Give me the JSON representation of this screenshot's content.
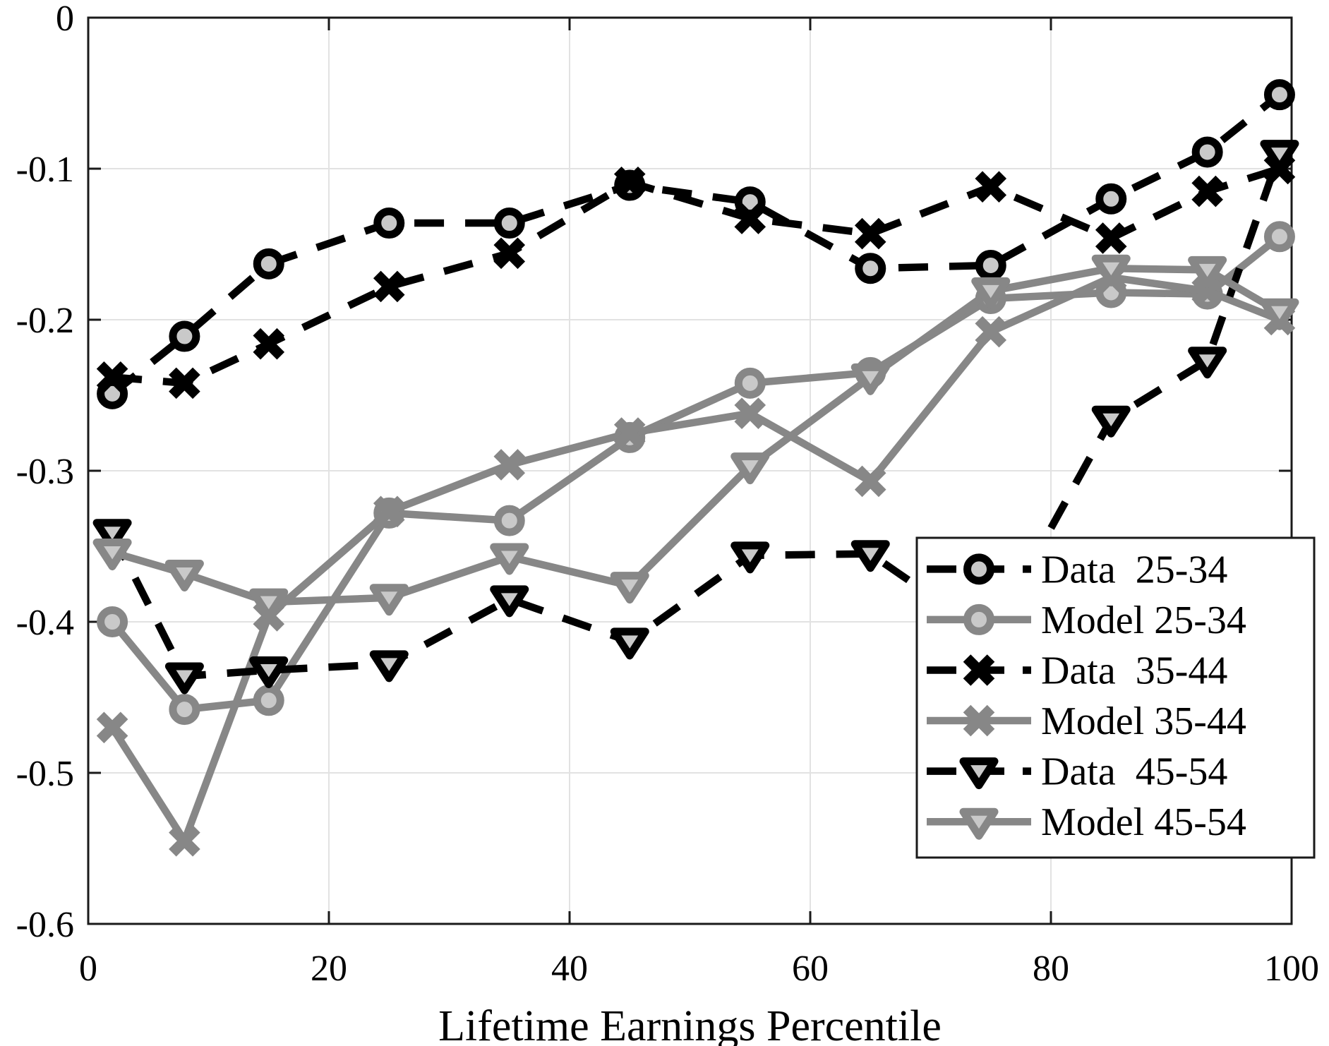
{
  "chart_data": {
    "type": "line",
    "title": "",
    "xlabel": "Lifetime Earnings Percentile",
    "ylabel": "",
    "xlim": [
      0,
      100
    ],
    "ylim": [
      -0.6,
      0
    ],
    "xticks": [
      0,
      20,
      40,
      60,
      80,
      100
    ],
    "xticklabels": [
      "0",
      "20",
      "40",
      "60",
      "80",
      "100"
    ],
    "yticks": [
      0,
      -0.1,
      -0.2,
      -0.3,
      -0.4,
      -0.5,
      -0.6
    ],
    "yticklabels": [
      "0",
      "-0.1",
      "-0.2",
      "-0.3",
      "-0.4",
      "-0.5",
      "-0.6"
    ],
    "grid": true,
    "grid_color": "#e2e2e2",
    "axis_color": "#1a1a1a",
    "marker_fill": "#c9c9c9",
    "legend_position": "lower-right-inside",
    "x": [
      2,
      8,
      15,
      25,
      35,
      45,
      55,
      65,
      75,
      85,
      93,
      99
    ],
    "series": [
      {
        "name": "Data  25-34",
        "color": "#000000",
        "style": "dashed",
        "marker": "circle",
        "values": [
          -0.249,
          -0.211,
          -0.163,
          -0.136,
          -0.136,
          -0.111,
          -0.122,
          -0.166,
          -0.164,
          -0.12,
          -0.089,
          -0.051
        ]
      },
      {
        "name": "Model 25-34",
        "color": "#878787",
        "style": "solid",
        "marker": "circle",
        "values": [
          -0.4,
          -0.458,
          -0.452,
          -0.328,
          -0.333,
          -0.278,
          -0.242,
          -0.235,
          -0.186,
          -0.182,
          -0.183,
          -0.145
        ]
      },
      {
        "name": "Data  35-44",
        "color": "#000000",
        "style": "dashed",
        "marker": "x",
        "values": [
          -0.238,
          -0.242,
          -0.216,
          -0.178,
          -0.156,
          -0.109,
          -0.133,
          -0.143,
          -0.112,
          -0.146,
          -0.115,
          -0.1
        ]
      },
      {
        "name": "Model 35-44",
        "color": "#878787",
        "style": "solid",
        "marker": "x",
        "values": [
          -0.47,
          -0.545,
          -0.396,
          -0.327,
          -0.296,
          -0.275,
          -0.262,
          -0.307,
          -0.208,
          -0.172,
          -0.181,
          -0.2
        ]
      },
      {
        "name": "Data  45-54",
        "color": "#000000",
        "style": "dashed",
        "marker": "triangle-down",
        "values": [
          -0.341,
          -0.436,
          -0.432,
          -0.428,
          -0.385,
          -0.413,
          -0.356,
          -0.355,
          -0.41,
          -0.266,
          -0.227,
          -0.09
        ]
      },
      {
        "name": "Model 45-54",
        "color": "#878787",
        "style": "solid",
        "marker": "triangle-down",
        "values": [
          -0.354,
          -0.368,
          -0.387,
          -0.384,
          -0.357,
          -0.376,
          -0.297,
          -0.238,
          -0.181,
          -0.166,
          -0.167,
          -0.195
        ]
      }
    ]
  }
}
